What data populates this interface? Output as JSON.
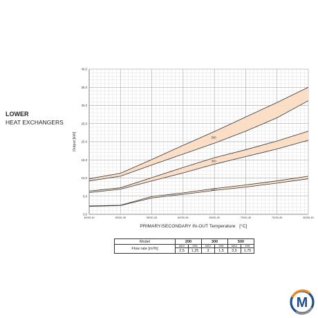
{
  "side_title": {
    "line1": "LOWER",
    "line2": "HEAT EXCHANGERS"
  },
  "chart_data": {
    "type": "area",
    "ylabel": "Output [kW]",
    "xlabel": "PRIMARY/SECONDARY IN-OUT Temperature",
    "xlabel_unit": "[°C]",
    "categories": [
      "45/30-40",
      "50/30-45",
      "55/30-45",
      "60/30-45",
      "65/30-45",
      "70/30-45",
      "75/30-45",
      "80/30-45"
    ],
    "yticks": [
      "0,0",
      "5,0",
      "10,0",
      "15,0",
      "20,0",
      "25,0",
      "30,0",
      "35,0",
      "40,0"
    ],
    "ylim": [
      0,
      40
    ],
    "grid": true,
    "series": [
      {
        "name": "500",
        "fill": "#fbdcc3",
        "upper": [
          9.8,
          11.3,
          15.1,
          19.0,
          22.8,
          26.8,
          30.8,
          35.0
        ],
        "lower": [
          9.2,
          10.5,
          13.6,
          16.6,
          19.6,
          22.9,
          26.6,
          31.3
        ]
      },
      {
        "name": "300",
        "fill": "#fbdcc3",
        "upper": [
          6.4,
          7.3,
          10.1,
          12.9,
          15.6,
          17.8,
          20.2,
          22.9
        ],
        "lower": [
          6.0,
          6.9,
          9.2,
          11.4,
          13.8,
          15.9,
          18.0,
          20.4
        ]
      },
      {
        "name": "200",
        "fill": "#fbdcc3",
        "upper": [
          2.3,
          2.5,
          4.9,
          5.9,
          7.1,
          8.1,
          9.2,
          10.5
        ],
        "lower": [
          2.2,
          2.4,
          4.5,
          5.5,
          6.6,
          7.5,
          8.6,
          9.8
        ]
      }
    ]
  },
  "flow_table": {
    "label": "Flow rate [m³/h]",
    "model_label": "Model",
    "max_label": "MAX",
    "min_label": "MIN",
    "models": [
      {
        "name": "200",
        "max": "2,5",
        "min": "1,25"
      },
      {
        "name": "300",
        "max": "3",
        "min": "1,5"
      },
      {
        "name": "500",
        "max": "3,5",
        "min": "1,75"
      }
    ]
  },
  "logo": {
    "letter": "M",
    "colors": {
      "blue": "#1f4f8a",
      "orange": "#f08a1c",
      "gray": "#8c8c8c"
    }
  }
}
